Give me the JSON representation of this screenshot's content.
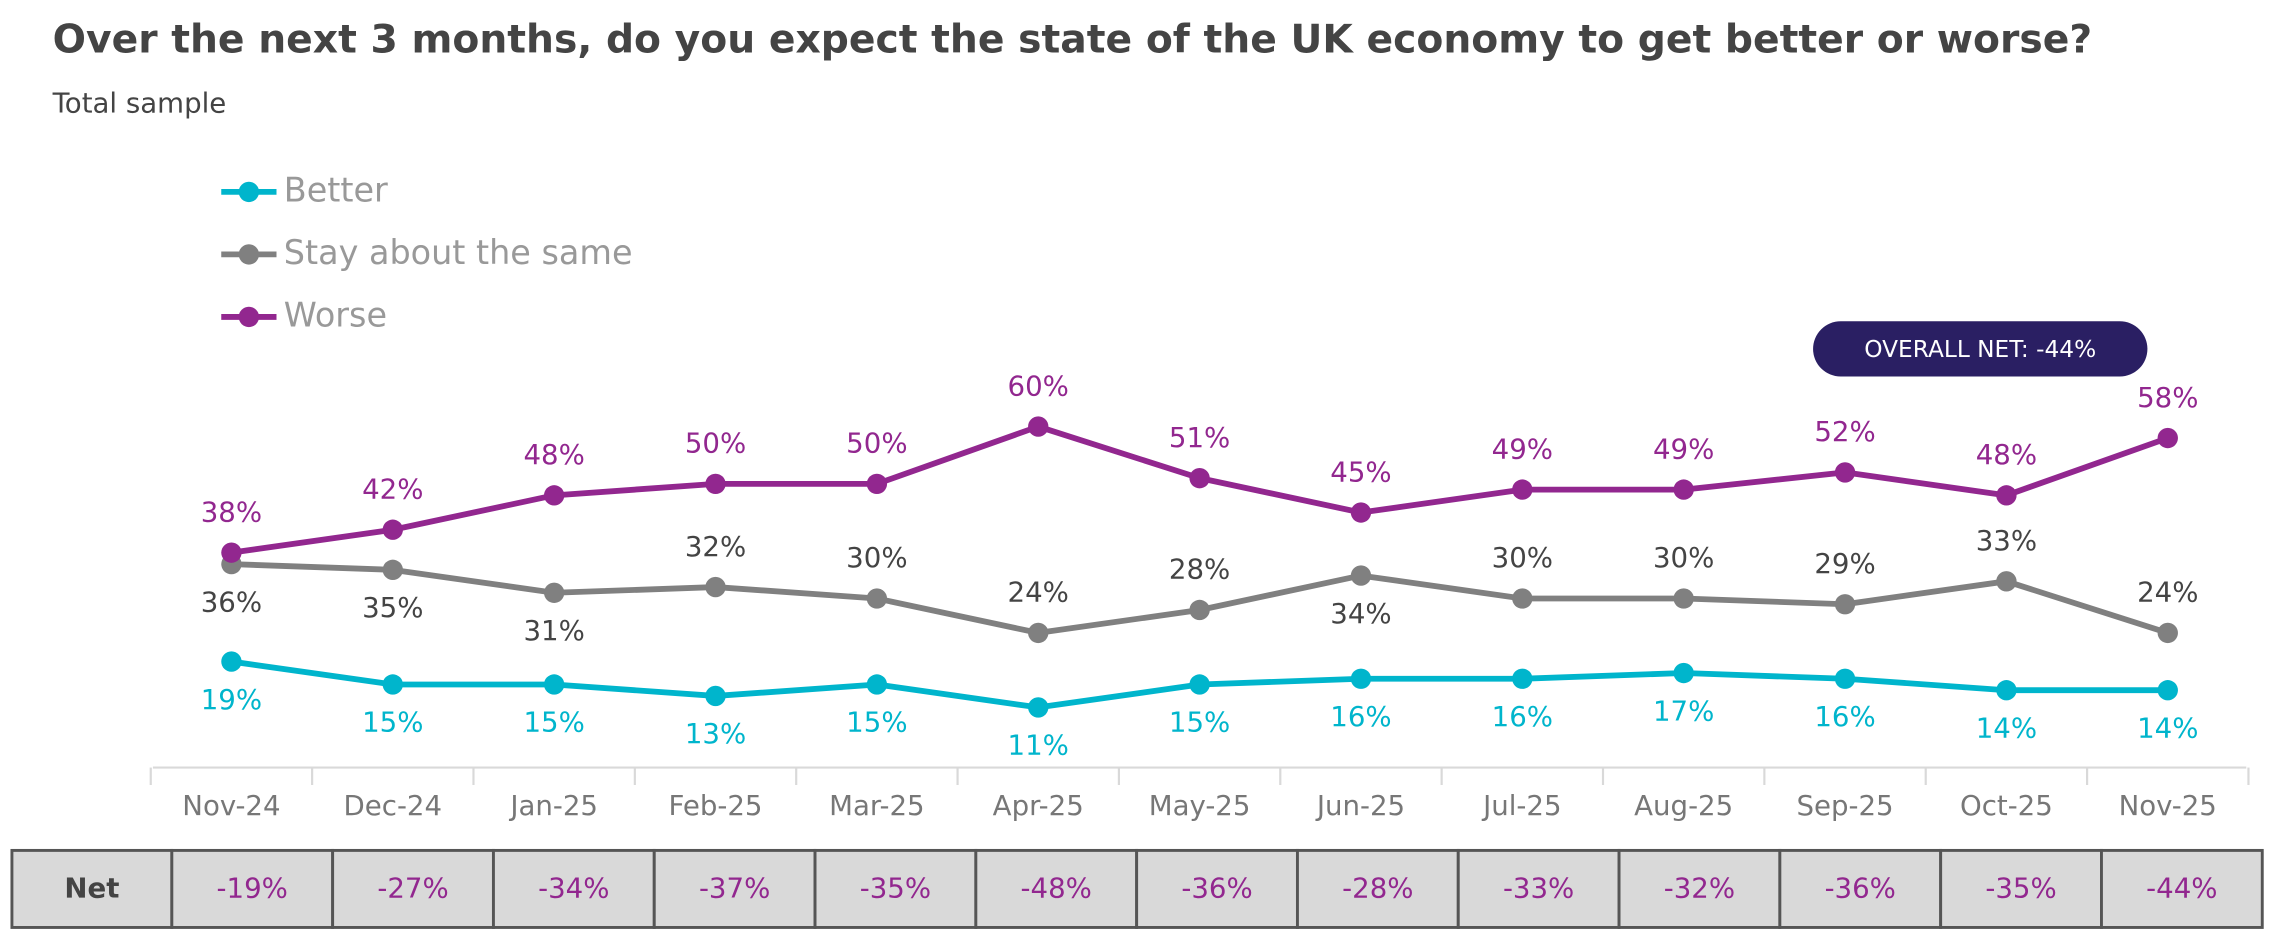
{
  "chart_data": {
    "type": "line",
    "title": "Over the next 3 months, do you expect the state of the UK economy to get better or worse?",
    "subtitle": "Total sample",
    "annotation": "OVERALL NET: -44%",
    "categories": [
      "Nov-24",
      "Dec-24",
      "Jan-25",
      "Feb-25",
      "Mar-25",
      "Apr-25",
      "May-25",
      "Jun-25",
      "Jul-25",
      "Aug-25",
      "Sep-25",
      "Oct-25",
      "Nov-25"
    ],
    "ylim": [
      0,
      70
    ],
    "series": [
      {
        "name": "Better",
        "color": "#00b5cc",
        "values": [
          19,
          15,
          15,
          13,
          15,
          11,
          15,
          16,
          16,
          17,
          16,
          14,
          14
        ],
        "value_labels": [
          "19%",
          "15%",
          "15%",
          "13%",
          "15%",
          "11%",
          "15%",
          "16%",
          "16%",
          "17%",
          "16%",
          "14%",
          "14%"
        ]
      },
      {
        "name": "Stay about the same",
        "color": "#808080",
        "values": [
          36,
          35,
          31,
          32,
          30,
          24,
          28,
          34,
          30,
          30,
          29,
          33,
          24
        ],
        "value_labels": [
          "36%",
          "35%",
          "31%",
          "32%",
          "30%",
          "24%",
          "28%",
          "34%",
          "30%",
          "30%",
          "29%",
          "33%",
          "24%"
        ]
      },
      {
        "name": "Worse",
        "color": "#92278f",
        "values": [
          38,
          42,
          48,
          50,
          50,
          60,
          51,
          45,
          49,
          49,
          52,
          48,
          58
        ],
        "value_labels": [
          "38%",
          "42%",
          "48%",
          "50%",
          "50%",
          "60%",
          "51%",
          "45%",
          "49%",
          "49%",
          "52%",
          "48%",
          "58%"
        ]
      }
    ]
  },
  "table": {
    "row_label": "Net",
    "values": [
      "-19%",
      "-27%",
      "-34%",
      "-37%",
      "-35%",
      "-48%",
      "-36%",
      "-28%",
      "-33%",
      "-32%",
      "-36%",
      "-35%",
      "-44%"
    ]
  }
}
